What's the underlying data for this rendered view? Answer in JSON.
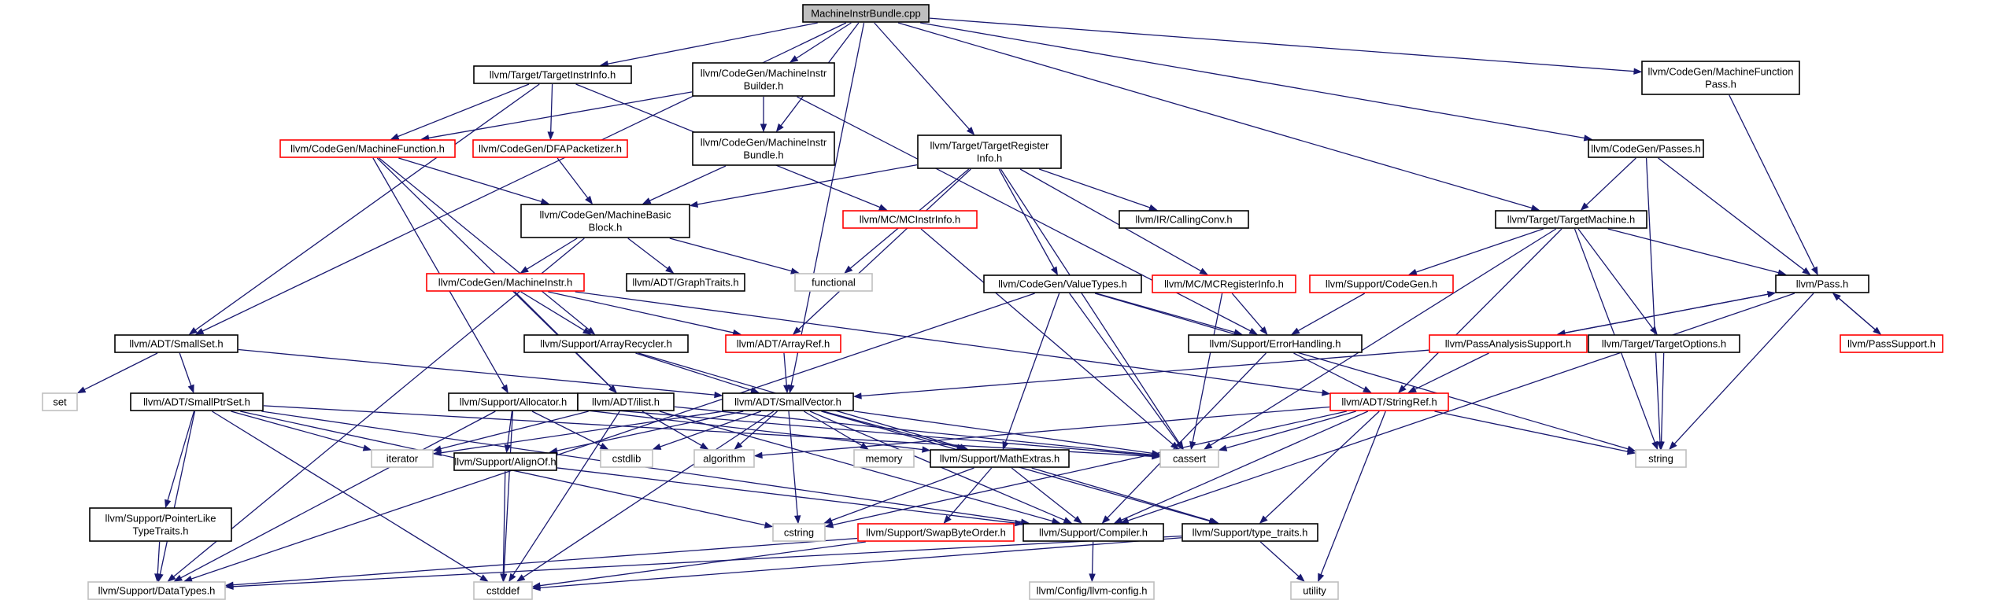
{
  "diagram": {
    "type": "include-dependency-graph",
    "colors": {
      "edge": "#191970",
      "root_fill": "#bfbfbf",
      "node_border": "#000000",
      "truncated_border": "#ff0000",
      "external_border": "#bfbfbf",
      "text": "#000000"
    },
    "nodes": [
      {
        "id": "root",
        "kind": "root",
        "lines": [
          "MachineInstrBundle.cpp"
        ]
      },
      {
        "id": "targetinstrinfo",
        "kind": "normal",
        "lines": [
          "llvm/Target/TargetInstrInfo.h"
        ]
      },
      {
        "id": "mibuilder",
        "kind": "normal",
        "lines": [
          "llvm/CodeGen/MachineInstr",
          "Builder.h"
        ]
      },
      {
        "id": "mfpass",
        "kind": "normal",
        "lines": [
          "llvm/CodeGen/MachineFunction",
          "Pass.h"
        ]
      },
      {
        "id": "mibundle",
        "kind": "normal",
        "lines": [
          "llvm/CodeGen/MachineInstr",
          "Bundle.h"
        ]
      },
      {
        "id": "machinefunction",
        "kind": "truncated",
        "lines": [
          "llvm/CodeGen/MachineFunction.h"
        ]
      },
      {
        "id": "dfapacketizer",
        "kind": "truncated",
        "lines": [
          "llvm/CodeGen/DFAPacketizer.h"
        ]
      },
      {
        "id": "targetreginfo",
        "kind": "normal",
        "lines": [
          "llvm/Target/TargetRegister",
          "Info.h"
        ]
      },
      {
        "id": "passes",
        "kind": "normal",
        "lines": [
          "llvm/CodeGen/Passes.h"
        ]
      },
      {
        "id": "mbb",
        "kind": "normal",
        "lines": [
          "llvm/CodeGen/MachineBasic",
          "Block.h"
        ]
      },
      {
        "id": "mcinstrinfo",
        "kind": "truncated",
        "lines": [
          "llvm/MC/MCInstrInfo.h"
        ]
      },
      {
        "id": "callingconv",
        "kind": "normal",
        "lines": [
          "llvm/IR/CallingConv.h"
        ]
      },
      {
        "id": "targetmachine",
        "kind": "normal",
        "lines": [
          "llvm/Target/TargetMachine.h"
        ]
      },
      {
        "id": "machineinstr",
        "kind": "truncated",
        "lines": [
          "llvm/CodeGen/MachineInstr.h"
        ]
      },
      {
        "id": "graphtraits",
        "kind": "normal",
        "lines": [
          "llvm/ADT/GraphTraits.h"
        ]
      },
      {
        "id": "functional",
        "kind": "external",
        "lines": [
          "functional"
        ]
      },
      {
        "id": "valuetypes",
        "kind": "normal",
        "lines": [
          "llvm/CodeGen/ValueTypes.h"
        ]
      },
      {
        "id": "mcreginfo",
        "kind": "truncated",
        "lines": [
          "llvm/MC/MCRegisterInfo.h"
        ]
      },
      {
        "id": "codegen",
        "kind": "truncated",
        "lines": [
          "llvm/Support/CodeGen.h"
        ]
      },
      {
        "id": "pass",
        "kind": "normal",
        "lines": [
          "llvm/Pass.h"
        ]
      },
      {
        "id": "smallset",
        "kind": "normal",
        "lines": [
          "llvm/ADT/SmallSet.h"
        ]
      },
      {
        "id": "arrayrecycler",
        "kind": "normal",
        "lines": [
          "llvm/Support/ArrayRecycler.h"
        ]
      },
      {
        "id": "arrayref",
        "kind": "truncated",
        "lines": [
          "llvm/ADT/ArrayRef.h"
        ]
      },
      {
        "id": "errorhandling",
        "kind": "normal",
        "lines": [
          "llvm/Support/ErrorHandling.h"
        ]
      },
      {
        "id": "passanalysis",
        "kind": "truncated",
        "lines": [
          "llvm/PassAnalysisSupport.h"
        ]
      },
      {
        "id": "targetoptions",
        "kind": "normal",
        "lines": [
          "llvm/Target/TargetOptions.h"
        ]
      },
      {
        "id": "passsupport",
        "kind": "truncated",
        "lines": [
          "llvm/PassSupport.h"
        ]
      },
      {
        "id": "set",
        "kind": "external",
        "lines": [
          "set"
        ]
      },
      {
        "id": "smallptrset",
        "kind": "normal",
        "lines": [
          "llvm/ADT/SmallPtrSet.h"
        ]
      },
      {
        "id": "allocator",
        "kind": "normal",
        "lines": [
          "llvm/Support/Allocator.h"
        ]
      },
      {
        "id": "ilist",
        "kind": "normal",
        "lines": [
          "llvm/ADT/ilist.h"
        ]
      },
      {
        "id": "smallvector",
        "kind": "normal",
        "lines": [
          "llvm/ADT/SmallVector.h"
        ]
      },
      {
        "id": "stringref",
        "kind": "truncated",
        "lines": [
          "llvm/ADT/StringRef.h"
        ]
      },
      {
        "id": "iterator",
        "kind": "external",
        "lines": [
          "iterator"
        ]
      },
      {
        "id": "alignof",
        "kind": "normal",
        "lines": [
          "llvm/Support/AlignOf.h"
        ]
      },
      {
        "id": "cstdlib",
        "kind": "external",
        "lines": [
          "cstdlib"
        ]
      },
      {
        "id": "algorithm",
        "kind": "external",
        "lines": [
          "algorithm"
        ]
      },
      {
        "id": "memory",
        "kind": "external",
        "lines": [
          "memory"
        ]
      },
      {
        "id": "mathextras",
        "kind": "normal",
        "lines": [
          "llvm/Support/MathExtras.h"
        ]
      },
      {
        "id": "cassert",
        "kind": "external",
        "lines": [
          "cassert"
        ]
      },
      {
        "id": "string",
        "kind": "external",
        "lines": [
          "string"
        ]
      },
      {
        "id": "ptrliketypetraits",
        "kind": "normal",
        "lines": [
          "llvm/Support/PointerLike",
          "TypeTraits.h"
        ]
      },
      {
        "id": "cstring",
        "kind": "external",
        "lines": [
          "cstring"
        ]
      },
      {
        "id": "swapbyteorder",
        "kind": "truncated",
        "lines": [
          "llvm/Support/SwapByteOrder.h"
        ]
      },
      {
        "id": "compiler",
        "kind": "normal",
        "lines": [
          "llvm/Support/Compiler.h"
        ]
      },
      {
        "id": "typetraits",
        "kind": "normal",
        "lines": [
          "llvm/Support/type_traits.h"
        ]
      },
      {
        "id": "datatypes",
        "kind": "external",
        "lines": [
          "llvm/Support/DataTypes.h"
        ]
      },
      {
        "id": "cstddef",
        "kind": "external",
        "lines": [
          "cstddef"
        ]
      },
      {
        "id": "llvmconfig",
        "kind": "external",
        "lines": [
          "llvm/Config/llvm-config.h"
        ]
      },
      {
        "id": "utility",
        "kind": "external",
        "lines": [
          "utility"
        ]
      }
    ],
    "edges": [
      [
        "root",
        "targetinstrinfo"
      ],
      [
        "root",
        "mibuilder"
      ],
      [
        "root",
        "mfpass"
      ],
      [
        "root",
        "mibundle"
      ],
      [
        "root",
        "targetreginfo"
      ],
      [
        "root",
        "passes"
      ],
      [
        "root",
        "targetmachine"
      ],
      [
        "root",
        "smallset"
      ],
      [
        "root",
        "smallvector"
      ],
      [
        "targetinstrinfo",
        "machinefunction"
      ],
      [
        "targetinstrinfo",
        "dfapacketizer"
      ],
      [
        "targetinstrinfo",
        "mcinstrinfo"
      ],
      [
        "targetinstrinfo",
        "smallset"
      ],
      [
        "mibuilder",
        "machinefunction"
      ],
      [
        "mibuilder",
        "mibundle"
      ],
      [
        "mibuilder",
        "errorhandling"
      ],
      [
        "mfpass",
        "pass"
      ],
      [
        "mibundle",
        "mbb"
      ],
      [
        "machinefunction",
        "mbb"
      ],
      [
        "machinefunction",
        "arrayrecycler"
      ],
      [
        "machinefunction",
        "allocator"
      ],
      [
        "machinefunction",
        "ilist"
      ],
      [
        "dfapacketizer",
        "mbb"
      ],
      [
        "targetreginfo",
        "mbb"
      ],
      [
        "targetreginfo",
        "callingconv"
      ],
      [
        "targetreginfo",
        "valuetypes"
      ],
      [
        "targetreginfo",
        "mcreginfo"
      ],
      [
        "targetreginfo",
        "functional"
      ],
      [
        "targetreginfo",
        "arrayref"
      ],
      [
        "targetreginfo",
        "cassert"
      ],
      [
        "passes",
        "targetmachine"
      ],
      [
        "passes",
        "pass"
      ],
      [
        "passes",
        "string"
      ],
      [
        "mbb",
        "machineinstr"
      ],
      [
        "mbb",
        "graphtraits"
      ],
      [
        "mbb",
        "functional"
      ],
      [
        "mbb",
        "datatypes"
      ],
      [
        "mcinstrinfo",
        "cassert"
      ],
      [
        "targetmachine",
        "codegen"
      ],
      [
        "targetmachine",
        "pass"
      ],
      [
        "targetmachine",
        "targetoptions"
      ],
      [
        "targetmachine",
        "stringref"
      ],
      [
        "targetmachine",
        "cassert"
      ],
      [
        "targetmachine",
        "string"
      ],
      [
        "machineinstr",
        "arrayrecycler"
      ],
      [
        "machineinstr",
        "arrayref"
      ],
      [
        "machineinstr",
        "ilist"
      ],
      [
        "machineinstr",
        "stringref"
      ],
      [
        "valuetypes",
        "errorhandling"
      ],
      [
        "valuetypes",
        "mathextras"
      ],
      [
        "valuetypes",
        "cassert"
      ],
      [
        "valuetypes",
        "string"
      ],
      [
        "valuetypes",
        "datatypes"
      ],
      [
        "mcreginfo",
        "errorhandling"
      ],
      [
        "mcreginfo",
        "cassert"
      ],
      [
        "codegen",
        "errorhandling"
      ],
      [
        "pass",
        "passanalysis"
      ],
      [
        "pass",
        "passsupport"
      ],
      [
        "pass",
        "compiler"
      ],
      [
        "pass",
        "string"
      ],
      [
        "smallset",
        "set"
      ],
      [
        "smallset",
        "smallptrset"
      ],
      [
        "smallset",
        "smallvector"
      ],
      [
        "arrayrecycler",
        "smallvector"
      ],
      [
        "arrayrecycler",
        "mathextras"
      ],
      [
        "arrayref",
        "smallvector"
      ],
      [
        "errorhandling",
        "stringref"
      ],
      [
        "errorhandling",
        "compiler"
      ],
      [
        "passanalysis",
        "pass"
      ],
      [
        "passanalysis",
        "smallvector"
      ],
      [
        "passanalysis",
        "stringref"
      ],
      [
        "targetoptions",
        "string"
      ],
      [
        "passsupport",
        "pass"
      ],
      [
        "smallptrset",
        "ptrliketypetraits"
      ],
      [
        "smallptrset",
        "iterator"
      ],
      [
        "smallptrset",
        "cstring"
      ],
      [
        "smallptrset",
        "compiler"
      ],
      [
        "smallptrset",
        "datatypes"
      ],
      [
        "smallptrset",
        "cstddef"
      ],
      [
        "smallptrset",
        "cassert"
      ],
      [
        "allocator",
        "alignof"
      ],
      [
        "allocator",
        "mathextras"
      ],
      [
        "allocator",
        "cstdlib"
      ],
      [
        "allocator",
        "cassert"
      ],
      [
        "allocator",
        "cstddef"
      ],
      [
        "allocator",
        "datatypes"
      ],
      [
        "ilist",
        "iterator"
      ],
      [
        "ilist",
        "algorithm"
      ],
      [
        "ilist",
        "cassert"
      ],
      [
        "ilist",
        "cstddef"
      ],
      [
        "ilist",
        "compiler"
      ],
      [
        "smallvector",
        "alignof"
      ],
      [
        "smallvector",
        "algorithm"
      ],
      [
        "smallvector",
        "memory"
      ],
      [
        "smallvector",
        "mathextras"
      ],
      [
        "smallvector",
        "cstring"
      ],
      [
        "smallvector",
        "cassert"
      ],
      [
        "smallvector",
        "compiler"
      ],
      [
        "smallvector",
        "typetraits"
      ],
      [
        "smallvector",
        "iterator"
      ],
      [
        "smallvector",
        "cstdlib"
      ],
      [
        "smallvector",
        "cstddef"
      ],
      [
        "stringref",
        "algorithm"
      ],
      [
        "stringref",
        "cassert"
      ],
      [
        "stringref",
        "string"
      ],
      [
        "stringref",
        "compiler"
      ],
      [
        "stringref",
        "typetraits"
      ],
      [
        "stringref",
        "utility"
      ],
      [
        "stringref",
        "cstring"
      ],
      [
        "alignof",
        "compiler"
      ],
      [
        "alignof",
        "cstddef"
      ],
      [
        "mathextras",
        "swapbyteorder"
      ],
      [
        "mathextras",
        "compiler"
      ],
      [
        "mathextras",
        "typetraits"
      ],
      [
        "mathextras",
        "cstring"
      ],
      [
        "ptrliketypetraits",
        "datatypes"
      ],
      [
        "swapbyteorder",
        "datatypes"
      ],
      [
        "swapbyteorder",
        "cstddef"
      ],
      [
        "compiler",
        "llvmconfig"
      ],
      [
        "typetraits",
        "datatypes"
      ],
      [
        "typetraits",
        "cstddef"
      ],
      [
        "typetraits",
        "utility"
      ]
    ]
  }
}
